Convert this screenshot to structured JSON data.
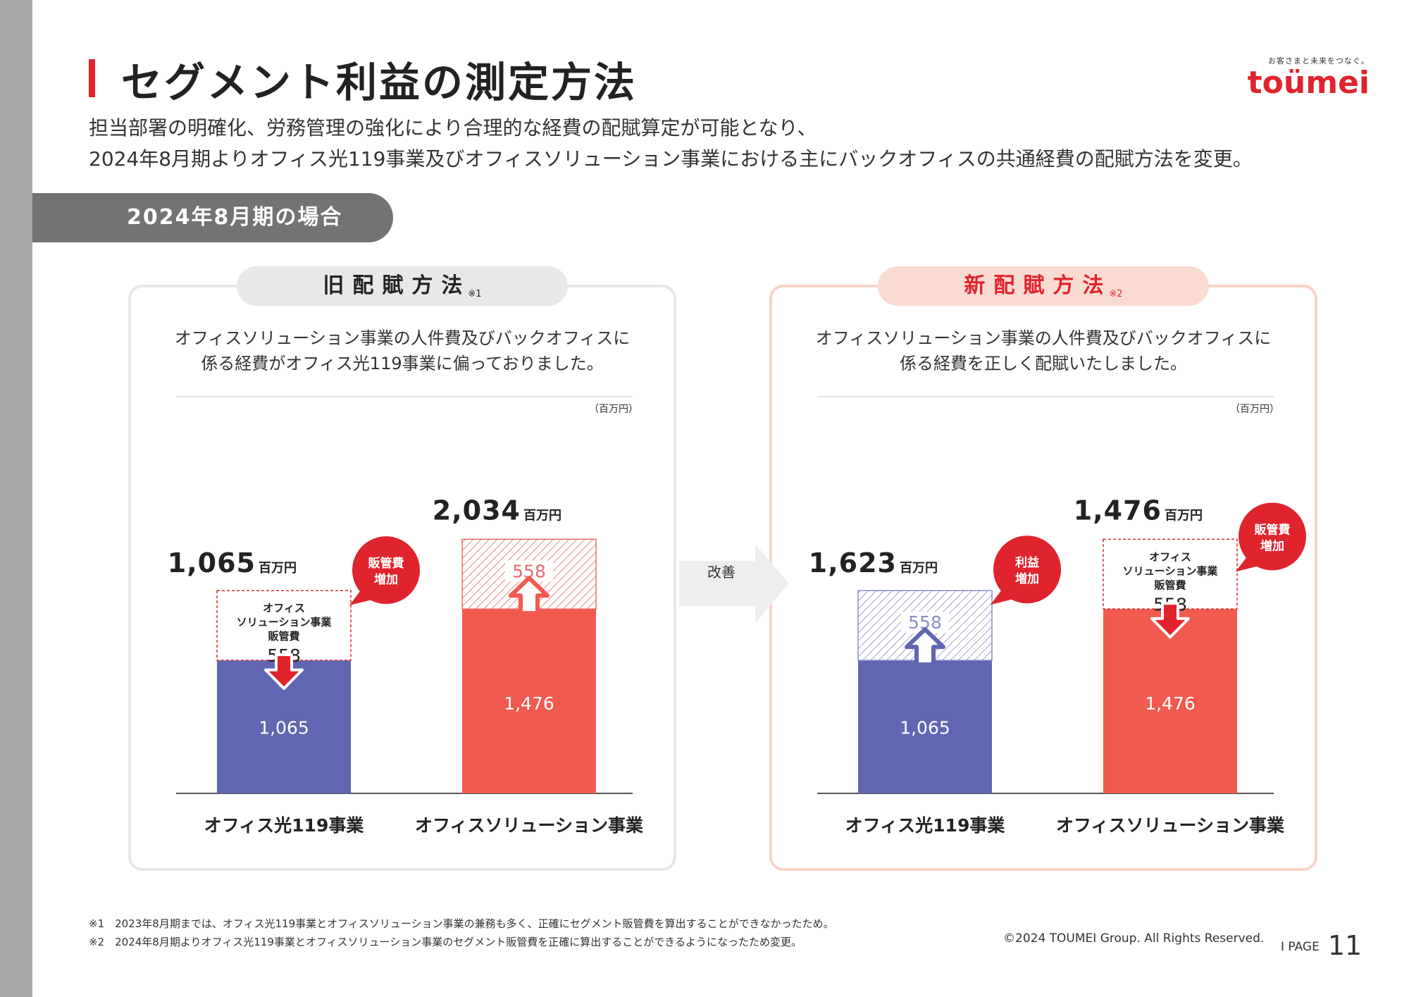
{
  "header": {
    "title": "セグメント利益の測定方法",
    "logo_tagline": "お客さまと未来をつなぐ。",
    "logo_name": "toümei"
  },
  "subtitle": {
    "line1": "担当部署の明確化、労務管理の強化により合理的な経費の配賦算定が可能となり、",
    "line2": "2024年8月期よりオフィス光119事業及びオフィスソリューション事業における主にバックオフィスの共通経費の配賦方法を変更。"
  },
  "section_label": "2024年8月期の場合",
  "arrow_label": "改善",
  "colors": {
    "blue": "#6166b2",
    "red": "#f05a4f",
    "accent": "#e0242e",
    "hatch_red": "#e86a6a",
    "hatch_blue": "#8a8fc7"
  },
  "chart_data": [
    {
      "type": "bar",
      "panel": "old",
      "title": "旧配賦方法",
      "title_note": "※1",
      "description_line1": "オフィスソリューション事業の人件費及びバックオフィスに",
      "description_line2": "係る経費がオフィス光119事業に偏っておりました。",
      "unit": "（百万円）",
      "categories": [
        "オフィス光119事業",
        "オフィスソリューション事業"
      ],
      "series": [
        {
          "name": "base",
          "values": [
            1065,
            1476
          ]
        },
        {
          "name": "オフィスソリューション事業販管費",
          "values": [
            558,
            558
          ]
        }
      ],
      "totals": [
        "1,065",
        "2,034"
      ],
      "total_unit": "百万円",
      "base_labels": [
        "1,065",
        "1,476"
      ],
      "shift_value": "558",
      "dashed_box_label": [
        "オフィス",
        "ソリューション事業",
        "販管費"
      ],
      "badge": [
        "販管費",
        "増加"
      ],
      "ylim": [
        0,
        2300
      ]
    },
    {
      "type": "bar",
      "panel": "new",
      "title": "新配賦方法",
      "title_note": "※2",
      "description_line1": "オフィスソリューション事業の人件費及びバックオフィスに",
      "description_line2": "係る経費を正しく配賦いたしました。",
      "unit": "（百万円）",
      "categories": [
        "オフィス光119事業",
        "オフィスソリューション事業"
      ],
      "series": [
        {
          "name": "base",
          "values": [
            1065,
            1476
          ]
        },
        {
          "name": "オフィスソリューション事業販管費",
          "values": [
            558,
            558
          ]
        }
      ],
      "totals": [
        "1,623",
        "1,476"
      ],
      "total_unit": "百万円",
      "base_labels": [
        "1,065",
        "1,476"
      ],
      "shift_value": "558",
      "dashed_box_label": [
        "オフィス",
        "ソリューション事業",
        "販管費"
      ],
      "badge_left": [
        "利益",
        "増加"
      ],
      "badge_right": [
        "販管費",
        "増加"
      ],
      "ylim": [
        0,
        2300
      ]
    }
  ],
  "footer": {
    "note1": "※1　2023年8月期までは、オフィス光119事業とオフィスソリューション事業の兼務も多く、正確にセグメント販管費を算出することができなかったため。",
    "note2": "※2　2024年8月期よりオフィス光119事業とオフィスソリューション事業のセグメント販管費を正確に算出することができるようになったため変更。",
    "copyright": "©2024 TOUMEI Group. All Rights Reserved.",
    "page_label": "I  PAGE",
    "page_number": "11"
  }
}
